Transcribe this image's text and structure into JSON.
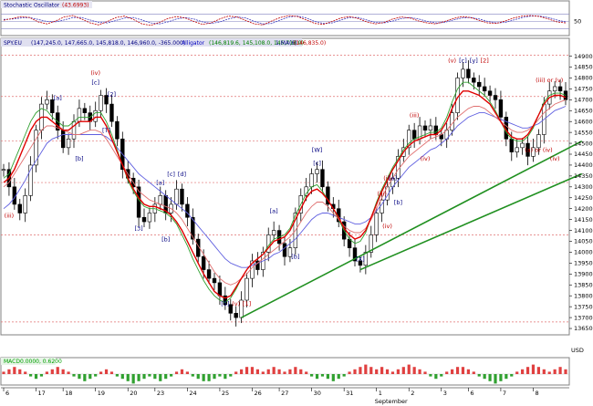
{
  "panels": {
    "oscillator": {
      "title": "Stochastic Oscillator",
      "value_label": "(43.6993)",
      "y_ticks": [
        {
          "label": "50",
          "v": 50
        }
      ],
      "levels": [
        20,
        50,
        80
      ],
      "k_line": [
        55,
        62,
        70,
        66,
        48,
        40,
        52,
        68,
        74,
        60,
        44,
        36,
        50,
        66,
        72,
        58,
        40,
        34,
        46,
        62,
        70,
        64,
        50,
        38,
        44,
        60,
        72,
        68,
        54,
        40,
        36,
        52,
        66,
        74,
        70,
        56,
        42,
        38,
        50,
        64,
        70,
        62,
        48,
        40,
        46,
        60,
        68,
        64,
        52,
        44,
        40,
        50,
        62,
        70,
        66,
        54,
        44,
        42,
        52,
        64,
        72,
        74,
        70,
        60,
        48,
        44
      ],
      "d_line": [
        58,
        60,
        64,
        66,
        58,
        50,
        48,
        56,
        66,
        66,
        56,
        46,
        44,
        54,
        64,
        66,
        56,
        44,
        40,
        48,
        60,
        66,
        60,
        48,
        42,
        48,
        60,
        68,
        64,
        50,
        40,
        42,
        56,
        68,
        72,
        64,
        50,
        42,
        44,
        56,
        66,
        66,
        56,
        46,
        44,
        52,
        62,
        66,
        60,
        50,
        44,
        46,
        56,
        64,
        66,
        60,
        50,
        44,
        46,
        56,
        66,
        72,
        72,
        66,
        56,
        48
      ],
      "k_color": "#c00000",
      "d_color": "#4040c0"
    },
    "price": {
      "title": "SPY.EU",
      "ohlc_label": "(147,245.0, 147,665.0, 145,818.0, 146,960.0, -365.000)",
      "ma_label": "Alligator",
      "ma_values": "(146,819.6, 145,108.0, 145,718.0)",
      "ma4_label": "1,MA(6)",
      "ma4_value": "(146,835.0)",
      "y_ticks": [
        13650,
        13700,
        13750,
        13800,
        13850,
        13900,
        13950,
        14000,
        14050,
        14100,
        14150,
        14200,
        14250,
        14300,
        14350,
        14400,
        14450,
        14500,
        14550,
        14600,
        14650,
        14700,
        14750,
        14800,
        14850,
        14900
      ],
      "y_axis_unit": "USD",
      "ylim": [
        13625,
        14940
      ],
      "h_levels": [
        13680,
        14080,
        14320,
        14510,
        14715,
        14905
      ],
      "wave_labels": [
        {
          "text": "(iii)",
          "x": 1,
          "y": 14160,
          "color": "#c00000"
        },
        {
          "text": "[a]",
          "x": 10,
          "y": 14700,
          "color": "#000080"
        },
        {
          "text": "(iv)",
          "x": 17,
          "y": 14815,
          "color": "#c00000"
        },
        {
          "text": "[c]",
          "x": 17,
          "y": 14770,
          "color": "#000080"
        },
        {
          "text": "[b]",
          "x": 14,
          "y": 14420,
          "color": "#000080"
        },
        {
          "text": "[2]",
          "x": 20,
          "y": 14715,
          "color": "#000080"
        },
        {
          "text": "[T]",
          "x": 19,
          "y": 14550,
          "color": "#000080"
        },
        {
          "text": "[c]",
          "x": 31,
          "y": 14350,
          "color": "#000080"
        },
        {
          "text": "[d]",
          "x": 33,
          "y": 14350,
          "color": "#000080"
        },
        {
          "text": "[a]",
          "x": 29,
          "y": 14310,
          "color": "#000080"
        },
        {
          "text": "[3]",
          "x": 25,
          "y": 14100,
          "color": "#000080"
        },
        {
          "text": "[b]",
          "x": 30,
          "y": 14050,
          "color": "#000080"
        },
        {
          "text": "[5]",
          "x": 41,
          "y": 13755,
          "color": "#000080"
        },
        {
          "text": "(v)",
          "x": 43,
          "y": 13755,
          "color": "#c00000"
        },
        {
          "text": "[1]",
          "x": 45,
          "y": 13755,
          "color": "#c00000"
        },
        {
          "text": "[a]",
          "x": 50,
          "y": 14180,
          "color": "#000080"
        },
        {
          "text": "[b]",
          "x": 54,
          "y": 13970,
          "color": "#000080"
        },
        {
          "text": "[W]",
          "x": 58,
          "y": 14460,
          "color": "#000080"
        },
        {
          "text": "[c]",
          "x": 58,
          "y": 14400,
          "color": "#000080"
        },
        {
          "text": "[X]",
          "x": 66,
          "y": 13960,
          "color": "#000080"
        },
        {
          "text": "(iii)",
          "x": 70,
          "y": 14260,
          "color": "#c00000"
        },
        {
          "text": "[b]",
          "x": 73,
          "y": 14220,
          "color": "#000080"
        },
        {
          "text": "(iv)",
          "x": 71,
          "y": 14110,
          "color": "#c00000"
        },
        {
          "text": "(ii)",
          "x": 71,
          "y": 14330,
          "color": "#c00000"
        },
        {
          "text": "[a]",
          "x": 72,
          "y": 14330,
          "color": "#000080"
        },
        {
          "text": "(iii)",
          "x": 76,
          "y": 14620,
          "color": "#c00000"
        },
        {
          "text": "(iv)",
          "x": 78,
          "y": 14420,
          "color": "#c00000"
        },
        {
          "text": "(v)",
          "x": 83,
          "y": 14870,
          "color": "#c00000"
        },
        {
          "text": "[c]",
          "x": 85,
          "y": 14870,
          "color": "#000080"
        },
        {
          "text": "[y]",
          "x": 87,
          "y": 14870,
          "color": "#000080"
        },
        {
          "text": "[2]",
          "x": 89,
          "y": 14870,
          "color": "#c00000"
        },
        {
          "text": "(iii) or (v)",
          "x": 101,
          "y": 14780,
          "color": "#c00000"
        },
        {
          "text": "(a) or (iv)",
          "x": 99,
          "y": 14460,
          "color": "#c00000"
        },
        {
          "text": "(iv)",
          "x": 102,
          "y": 14420,
          "color": "#c00000"
        }
      ],
      "trendlines": [
        {
          "x1": 44,
          "y1": 13700,
          "x2": 107,
          "y2": 14510,
          "color": "#209020"
        },
        {
          "x1": 66,
          "y1": 13920,
          "x2": 107,
          "y2": 14360,
          "color": "#209020"
        }
      ]
    },
    "macd": {
      "title": "MACD",
      "value_label": "0.0000, 0.6200",
      "title_color": "#00a000"
    }
  },
  "chart_data": {
    "type": "line",
    "title": "SPY.EU",
    "x_axis_labels": [
      "6",
      "17",
      "18",
      "19",
      "20",
      "23",
      "24",
      "25",
      "26",
      "27",
      "30",
      "31",
      "1",
      "2",
      "3",
      "6",
      "7",
      "8"
    ],
    "x_label_positions": [
      0,
      6,
      11,
      17,
      23,
      28,
      34,
      40,
      46,
      51,
      57,
      63,
      69,
      75,
      81,
      86,
      92,
      98
    ],
    "month_label": "September",
    "month_label_index": 69,
    "close": [
      14380,
      14300,
      14220,
      14180,
      14260,
      14400,
      14560,
      14680,
      14700,
      14640,
      14560,
      14480,
      14520,
      14600,
      14660,
      14640,
      14600,
      14650,
      14720,
      14680,
      14600,
      14520,
      14380,
      14340,
      14300,
      14160,
      14140,
      14180,
      14220,
      14260,
      14180,
      14220,
      14290,
      14220,
      14160,
      14060,
      13980,
      13920,
      13880,
      13860,
      13800,
      13760,
      13720,
      13700,
      13780,
      13880,
      13960,
      13920,
      14000,
      14080,
      14100,
      14040,
      13980,
      14020,
      14180,
      14260,
      14300,
      14360,
      14380,
      14300,
      14220,
      14200,
      14140,
      14060,
      14020,
      13960,
      13940,
      14000,
      14080,
      14180,
      14240,
      14300,
      14340,
      14440,
      14480,
      14560,
      14520,
      14580,
      14560,
      14580,
      14540,
      14520,
      14560,
      14640,
      14800,
      14840,
      14800,
      14780,
      14760,
      14740,
      14720,
      14700,
      14620,
      14520,
      14460,
      14480,
      14500,
      14440,
      14480,
      14540,
      14680,
      14740,
      14760,
      14740,
      14700
    ],
    "alligator": [
      14300,
      14320,
      14360,
      14400,
      14440,
      14480,
      14520,
      14560,
      14580,
      14580,
      14570,
      14560,
      14550,
      14540,
      14540,
      14550,
      14560,
      14560,
      14550,
      14520,
      14480,
      14440,
      14400,
      14360,
      14320,
      14280,
      14260,
      14240,
      14230,
      14220,
      14210,
      14200,
      14180,
      14150,
      14110,
      14070,
      14030,
      13990,
      13950,
      13910,
      13880,
      13860,
      13850,
      13860,
      13880,
      13900,
      13930,
      13950,
      13970,
      13990,
      14010,
      14030,
      14050,
      14070,
      14100,
      14140,
      14180,
      14210,
      14230,
      14230,
      14210,
      14180,
      14150,
      14120,
      14100,
      14090,
      14090,
      14110,
      14150,
      14200,
      14250,
      14300,
      14340,
      14380,
      14410,
      14440,
      14460,
      14480,
      14500,
      14520,
      14530,
      14540,
      14560,
      14590,
      14620,
      14640,
      14660,
      14670,
      14670,
      14660,
      14640,
      14620,
      14600,
      14580,
      14560,
      14550,
      14550,
      14560,
      14580,
      14610,
      14640,
      14660,
      14680,
      14690,
      14700
    ],
    "ma_red": [
      14320,
      14340,
      14380,
      14440,
      14500,
      14560,
      14600,
      14620,
      14620,
      14600,
      14580,
      14560,
      14560,
      14580,
      14600,
      14600,
      14600,
      14620,
      14620,
      14580,
      14520,
      14460,
      14400,
      14340,
      14290,
      14250,
      14220,
      14210,
      14210,
      14200,
      14190,
      14170,
      14140,
      14100,
      14050,
      14000,
      13950,
      13900,
      13860,
      13820,
      13800,
      13790,
      13800,
      13840,
      13880,
      13920,
      13950,
      13970,
      13990,
      14020,
      14050,
      14060,
      14070,
      14100,
      14150,
      14200,
      14250,
      14280,
      14290,
      14270,
      14240,
      14200,
      14160,
      14110,
      14080,
      14060,
      14070,
      14100,
      14160,
      14220,
      14280,
      14330,
      14380,
      14420,
      14460,
      14490,
      14510,
      14520,
      14530,
      14540,
      14540,
      14560,
      14600,
      14660,
      14710,
      14740,
      14740,
      14730,
      14720,
      14700,
      14680,
      14640,
      14600,
      14560,
      14530,
      14520,
      14520,
      14540,
      14580,
      14630,
      14680,
      14710,
      14720,
      14720,
      14710
    ],
    "ma_green": [
      14340,
      14360,
      14420,
      14480,
      14540,
      14600,
      14640,
      14660,
      14650,
      14620,
      14600,
      14580,
      14580,
      14600,
      14620,
      14620,
      14620,
      14640,
      14640,
      14600,
      14540,
      14470,
      14400,
      14330,
      14280,
      14240,
      14210,
      14200,
      14200,
      14190,
      14180,
      14160,
      14130,
      14080,
      14030,
      13970,
      13920,
      13870,
      13830,
      13800,
      13780,
      13770,
      13790,
      13830,
      13880,
      13920,
      13950,
      13970,
      13990,
      14030,
      14060,
      14070,
      14080,
      14110,
      14170,
      14220,
      14270,
      14300,
      14310,
      14280,
      14240,
      14200,
      14150,
      14100,
      14060,
      14040,
      14050,
      14090,
      14160,
      14230,
      14290,
      14340,
      14390,
      14430,
      14470,
      14500,
      14520,
      14530,
      14540,
      14550,
      14550,
      14570,
      14620,
      14690,
      14750,
      14780,
      14780,
      14760,
      14740,
      14720,
      14690,
      14650,
      14600,
      14550,
      14520,
      14510,
      14510,
      14530,
      14570,
      14630,
      14690,
      14720,
      14730,
      14730,
      14720
    ],
    "ma_blue": [
      14200,
      14220,
      14250,
      14290,
      14330,
      14380,
      14420,
      14460,
      14500,
      14520,
      14530,
      14540,
      14540,
      14540,
      14540,
      14540,
      14540,
      14540,
      14540,
      14530,
      14510,
      14480,
      14450,
      14420,
      14390,
      14360,
      14340,
      14320,
      14300,
      14280,
      14260,
      14240,
      14220,
      14200,
      14180,
      14150,
      14120,
      14090,
      14060,
      14030,
      14000,
      13970,
      13950,
      13940,
      13930,
      13930,
      13940,
      13950,
      13960,
      13970,
      13990,
      14000,
      14020,
      14040,
      14060,
      14090,
      14120,
      14150,
      14170,
      14180,
      14180,
      14170,
      14160,
      14150,
      14140,
      14130,
      14130,
      14140,
      14160,
      14190,
      14220,
      14260,
      14300,
      14330,
      14360,
      14390,
      14410,
      14430,
      14450,
      14470,
      14480,
      14500,
      14520,
      14550,
      14580,
      14600,
      14620,
      14630,
      14640,
      14640,
      14630,
      14620,
      14610,
      14600,
      14590,
      14580,
      14570,
      14570,
      14580,
      14590,
      14610,
      14630,
      14650,
      14660,
      14670
    ],
    "histogram": [
      1,
      2,
      3,
      2,
      1,
      -1,
      -2,
      -1,
      1,
      2,
      3,
      2,
      1,
      -1,
      -2,
      -3,
      -2,
      -1,
      1,
      2,
      1,
      -1,
      -2,
      -3,
      -4,
      -3,
      -2,
      -1,
      -2,
      -3,
      -2,
      -1,
      1,
      2,
      1,
      -1,
      -2,
      -3,
      -3,
      -2,
      -1,
      -2,
      -1,
      1,
      2,
      3,
      3,
      2,
      1,
      2,
      3,
      2,
      1,
      2,
      3,
      2,
      1,
      -1,
      -2,
      -1,
      -2,
      -3,
      -2,
      -1,
      1,
      2,
      3,
      4,
      3,
      2,
      3,
      2,
      1,
      2,
      3,
      4,
      3,
      2,
      1,
      -1,
      -2,
      -1,
      1,
      2,
      3,
      3,
      2,
      1,
      -1,
      -2,
      -3,
      -4,
      -3,
      -2,
      -1,
      1,
      2,
      3,
      4,
      3,
      2,
      1,
      2,
      3,
      2
    ]
  }
}
